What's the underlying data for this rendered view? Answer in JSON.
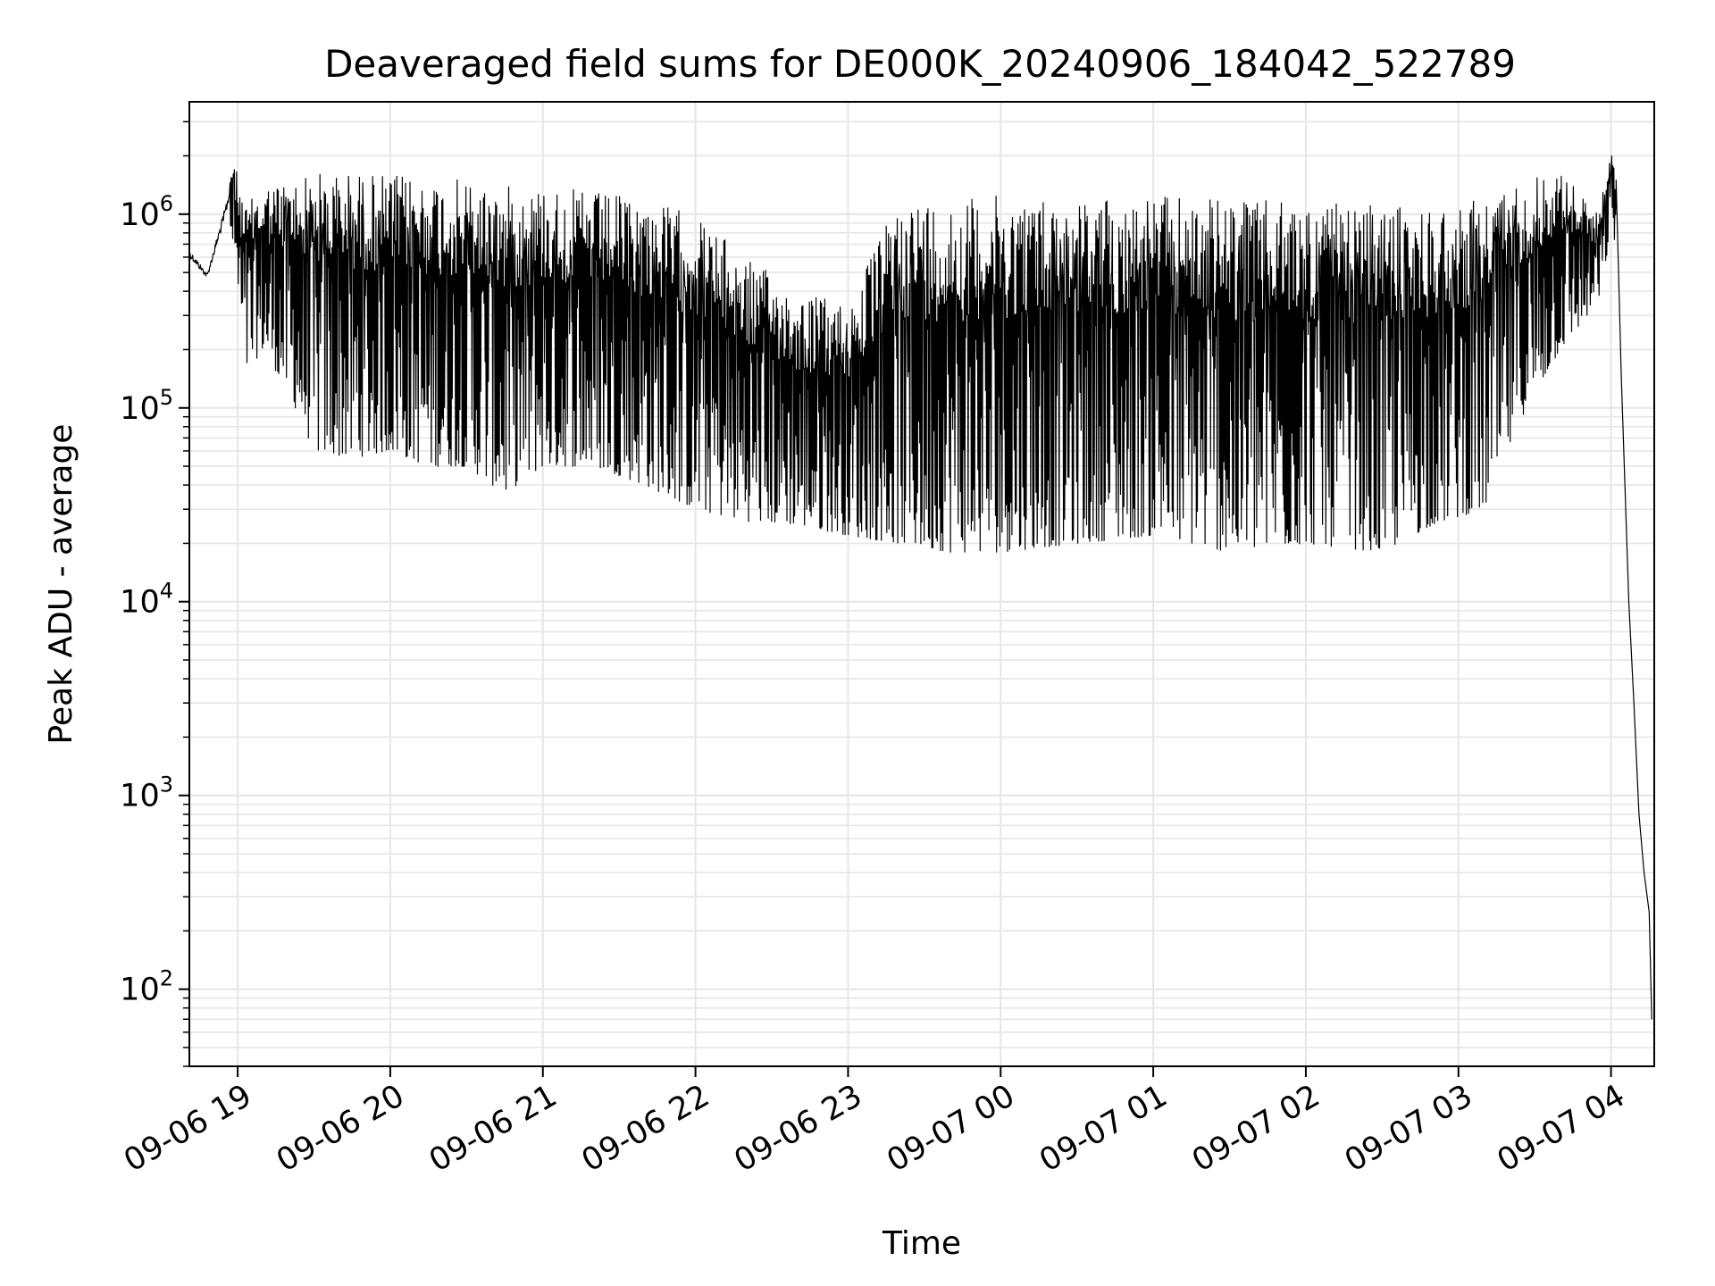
{
  "chart_data": {
    "type": "line",
    "title": "Deaveraged field sums for DE000K_20240906_184042_522789",
    "xlabel": "Time",
    "ylabel": "Peak ADU - average",
    "yscale": "log",
    "grid": true,
    "legend": "none",
    "line_color": "#000000",
    "grid_color": "#e6e6e6",
    "xlim": [
      "2024-09-06 18:41",
      "2024-09-07 04:17"
    ],
    "ylim": [
      40,
      3800000
    ],
    "x_ticks": [
      {
        "t": "2024-09-06 19:00",
        "label": "09-06 19"
      },
      {
        "t": "2024-09-06 20:00",
        "label": "09-06 20"
      },
      {
        "t": "2024-09-06 21:00",
        "label": "09-06 21"
      },
      {
        "t": "2024-09-06 22:00",
        "label": "09-06 22"
      },
      {
        "t": "2024-09-06 23:00",
        "label": "09-06 23"
      },
      {
        "t": "2024-09-07 00:00",
        "label": "09-07 00"
      },
      {
        "t": "2024-09-07 01:00",
        "label": "09-07 01"
      },
      {
        "t": "2024-09-07 02:00",
        "label": "09-07 02"
      },
      {
        "t": "2024-09-07 03:00",
        "label": "09-07 03"
      },
      {
        "t": "2024-09-07 04:00",
        "label": "09-07 04"
      }
    ],
    "y_ticks": [
      {
        "value": 100,
        "base": "10",
        "exp": "2"
      },
      {
        "value": 1000,
        "base": "10",
        "exp": "3"
      },
      {
        "value": 10000,
        "base": "10",
        "exp": "4"
      },
      {
        "value": 100000,
        "base": "10",
        "exp": "5"
      },
      {
        "value": 1000000,
        "base": "10",
        "exp": "6"
      }
    ],
    "envelope": [
      {
        "t": "2024-09-06 18:41",
        "hi": 700000,
        "lo": 450000
      },
      {
        "t": "2024-09-06 18:48",
        "hi": 520000,
        "lo": 380000
      },
      {
        "t": "2024-09-06 18:55",
        "hi": 1200000,
        "lo": 600000
      },
      {
        "t": "2024-09-06 18:58",
        "hi": 2000000,
        "lo": 700000
      },
      {
        "t": "2024-09-06 19:03",
        "hi": 1100000,
        "lo": 150000
      },
      {
        "t": "2024-09-06 19:10",
        "hi": 1400000,
        "lo": 200000
      },
      {
        "t": "2024-09-06 19:20",
        "hi": 1500000,
        "lo": 120000
      },
      {
        "t": "2024-09-06 19:30",
        "hi": 1650000,
        "lo": 60000
      },
      {
        "t": "2024-09-06 19:45",
        "hi": 1650000,
        "lo": 55000
      },
      {
        "t": "2024-09-06 20:00",
        "hi": 1600000,
        "lo": 60000
      },
      {
        "t": "2024-09-06 20:15",
        "hi": 1550000,
        "lo": 50000
      },
      {
        "t": "2024-09-06 20:30",
        "hi": 1500000,
        "lo": 50000
      },
      {
        "t": "2024-09-06 20:45",
        "hi": 1400000,
        "lo": 36000
      },
      {
        "t": "2024-09-06 21:00",
        "hi": 1400000,
        "lo": 50000
      },
      {
        "t": "2024-09-06 21:20",
        "hi": 1300000,
        "lo": 50000
      },
      {
        "t": "2024-09-06 21:40",
        "hi": 1200000,
        "lo": 40000
      },
      {
        "t": "2024-09-06 22:00",
        "hi": 1000000,
        "lo": 30000
      },
      {
        "t": "2024-09-06 22:20",
        "hi": 600000,
        "lo": 26000
      },
      {
        "t": "2024-09-06 22:40",
        "hi": 400000,
        "lo": 25000
      },
      {
        "t": "2024-09-06 23:00",
        "hi": 350000,
        "lo": 22000
      },
      {
        "t": "2024-09-06 23:20",
        "hi": 1200000,
        "lo": 20000
      },
      {
        "t": "2024-09-06 23:40",
        "hi": 1200000,
        "lo": 18000
      },
      {
        "t": "2024-09-07 00:00",
        "hi": 1250000,
        "lo": 18000
      },
      {
        "t": "2024-09-07 00:30",
        "hi": 1200000,
        "lo": 20000
      },
      {
        "t": "2024-09-07 01:00",
        "hi": 1250000,
        "lo": 22000
      },
      {
        "t": "2024-09-07 01:30",
        "hi": 1200000,
        "lo": 18000
      },
      {
        "t": "2024-09-07 02:00",
        "hi": 1150000,
        "lo": 20000
      },
      {
        "t": "2024-09-07 02:30",
        "hi": 1100000,
        "lo": 18000
      },
      {
        "t": "2024-09-07 02:50",
        "hi": 1100000,
        "lo": 25000
      },
      {
        "t": "2024-09-07 03:10",
        "hi": 1200000,
        "lo": 30000
      },
      {
        "t": "2024-09-07 03:25",
        "hi": 1500000,
        "lo": 90000
      },
      {
        "t": "2024-09-07 03:40",
        "hi": 1700000,
        "lo": 200000
      },
      {
        "t": "2024-09-07 03:55",
        "hi": 1000000,
        "lo": 350000
      },
      {
        "t": "2024-09-07 04:00",
        "hi": 2200000,
        "lo": 800000
      },
      {
        "t": "2024-09-07 04:02",
        "hi": 1500000,
        "lo": 700000
      }
    ],
    "tail": [
      {
        "t": "2024-09-07 04:02",
        "y": 1500000
      },
      {
        "t": "2024-09-07 04:04",
        "y": 150000
      },
      {
        "t": "2024-09-07 04:07",
        "y": 10000
      },
      {
        "t": "2024-09-07 04:09",
        "y": 3000
      },
      {
        "t": "2024-09-07 04:11",
        "y": 800
      },
      {
        "t": "2024-09-07 04:13",
        "y": 400
      },
      {
        "t": "2024-09-07 04:15",
        "y": 250
      },
      {
        "t": "2024-09-07 04:16",
        "y": 70
      }
    ]
  }
}
